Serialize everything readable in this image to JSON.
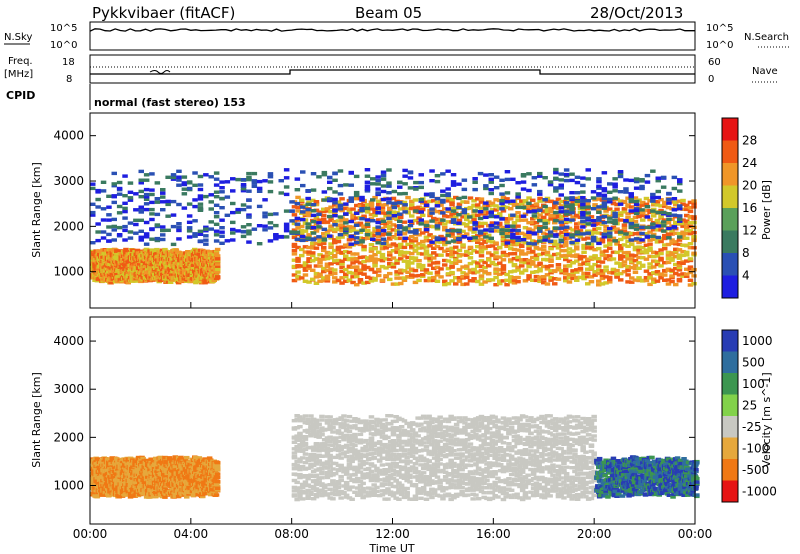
{
  "header": {
    "station": "Pykkvibaer (fitACF)",
    "beam": "Beam 05",
    "date": "28/Oct/2013"
  },
  "strip_panels": {
    "nsky_label": "N.Sky",
    "nsearch_label": "N.Search",
    "nsky_ticks": [
      "10^5",
      "10^0"
    ],
    "nsearch_ticks": [
      "10^5",
      "10^0"
    ],
    "freq_label": "Freq.",
    "freq_unit": "[MHz]",
    "freq_ticks": [
      "18",
      "8"
    ],
    "nave_label": "Nave",
    "nave_ticks": [
      "60",
      "0"
    ],
    "cpid_label": "CPID",
    "cpid_text": "normal (fast stereo) 153"
  },
  "colors": {
    "power_scale": [
      "#1e1ee0",
      "#2a50b4",
      "#3a7a60",
      "#5aa05a",
      "#d2c82a",
      "#f09628",
      "#f05a14",
      "#e61414"
    ],
    "velocity_scale": [
      "#283cb4",
      "#2f6e9e",
      "#3c9650",
      "#82d24a",
      "#c8c8c2",
      "#e6a83c",
      "#f07814",
      "#e61414"
    ]
  },
  "chart_data": [
    {
      "type": "heatmap",
      "name": "Power",
      "ylabel": "Slant Range [km]",
      "ylim": [
        200,
        4500
      ],
      "yticks": [
        1000,
        2000,
        3000,
        4000
      ],
      "x_range_ut_hours": [
        0,
        24
      ],
      "colorbar": {
        "label": "Power [dB]",
        "ticks": [
          "4",
          "8",
          "12",
          "16",
          "20",
          "24",
          "28"
        ]
      },
      "features": [
        {
          "desc": "00-05 UT main echo band",
          "x": [
            0,
            5
          ],
          "y": [
            850,
            1500
          ],
          "value_db": 22
        },
        {
          "desc": "08-24 UT strong echo band",
          "x": [
            8,
            24
          ],
          "y": [
            800,
            2700
          ],
          "value_db": 24
        },
        {
          "desc": "far range weak echoes",
          "x": [
            0,
            23.5
          ],
          "y": [
            1700,
            3300
          ],
          "value_db": 8
        }
      ]
    },
    {
      "type": "heatmap",
      "name": "Velocity",
      "xlabel": "Time UT",
      "ylabel": "Slant Range [km]",
      "ylim": [
        200,
        4500
      ],
      "yticks": [
        1000,
        2000,
        3000,
        4000
      ],
      "x_range_ut_hours": [
        0,
        24
      ],
      "xticks": [
        "00:00",
        "04:00",
        "08:00",
        "12:00",
        "16:00",
        "20:00",
        "00:00"
      ],
      "colorbar": {
        "label": "Velocity [m s^-1]",
        "ticks": [
          "1000",
          "500",
          "100",
          "25",
          "-25",
          "-100",
          "-500",
          "-1000"
        ]
      },
      "features": [
        {
          "desc": "00-05 UT negative velocities",
          "x": [
            0,
            5
          ],
          "y": [
            850,
            1600
          ],
          "value_ms": -300
        },
        {
          "desc": "08-20 UT ground scatter",
          "x": [
            8,
            20
          ],
          "y": [
            800,
            2500
          ],
          "value_ms": 0
        },
        {
          "desc": "20-24 UT positive velocities",
          "x": [
            20,
            24
          ],
          "y": [
            850,
            1600
          ],
          "value_ms": 400
        }
      ]
    }
  ]
}
